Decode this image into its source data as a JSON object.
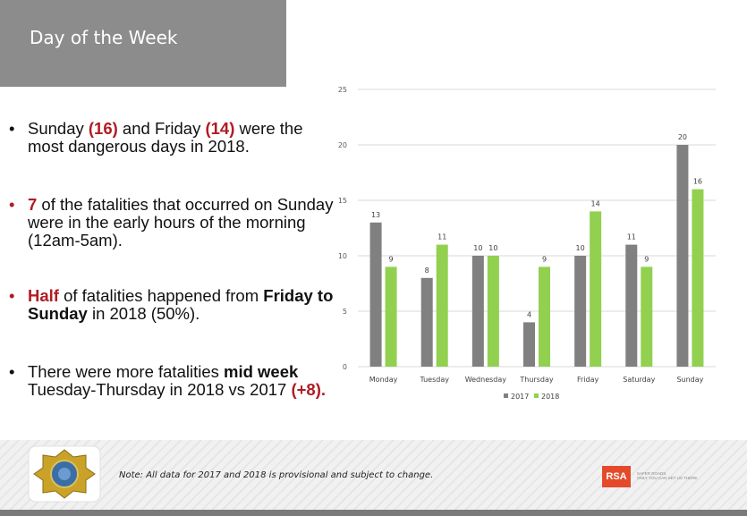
{
  "header": {
    "title": "Day of the Week"
  },
  "bullets": {
    "b1": {
      "pre": "Sunday ",
      "v1": "(16)",
      "mid": " and Friday ",
      "v2": "(14)",
      "post": " were the most dangerous days in 2018."
    },
    "b2": {
      "v1": "7",
      "post": " of the fatalities that occurred on Sunday were in the early hours of the morning (12am-5am)."
    },
    "b3": {
      "v1": "Half",
      "mid": " of fatalities happened from ",
      "b": "Friday to Sunday",
      "post": " in 2018 (50%)."
    },
    "b4": {
      "pre": "There were more fatalities ",
      "b": "mid week",
      "mid": " Tuesday-Thursday in 2018 vs 2017 ",
      "v1": "(+8)."
    }
  },
  "chart_data": {
    "type": "bar",
    "categories": [
      "Monday",
      "Tuesday",
      "Wednesday",
      "Thursday",
      "Friday",
      "Saturday",
      "Sunday"
    ],
    "series": [
      {
        "name": "2017",
        "values": [
          13,
          8,
          10,
          4,
          10,
          11,
          20
        ],
        "color": "#808080"
      },
      {
        "name": "2018",
        "values": [
          9,
          11,
          10,
          9,
          14,
          9,
          16
        ],
        "color": "#92d050"
      }
    ],
    "ylim": [
      0,
      25
    ],
    "yticks": [
      0,
      5,
      10,
      15,
      20,
      25
    ],
    "grid": true,
    "legend": "bottom"
  },
  "footer": {
    "note": "Note: All data for 2017 and 2018 is provisional and subject to change.",
    "brand": "RSA",
    "tagline1": "SAFER ROADS.",
    "tagline2": "ONLY YOU CAN SET US THERE."
  },
  "colors": {
    "accent_red": "#b01c22",
    "header_gray": "#8c8c8c",
    "rsa_orange": "#e44a2a"
  }
}
